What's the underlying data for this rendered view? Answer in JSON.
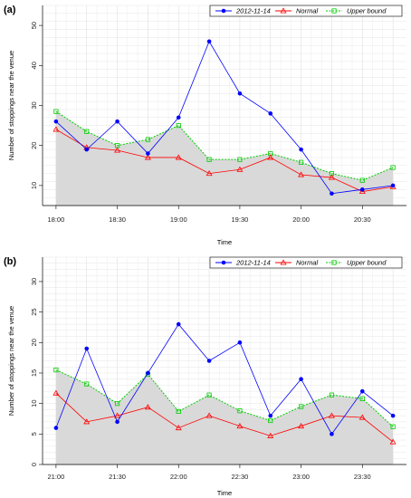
{
  "chart_data": [
    {
      "type": "line",
      "panel_label": "(a)",
      "xlabel": "Time",
      "ylabel": "Number of stoppings near the venue",
      "x_ticks": [
        "18:00",
        "18:30",
        "19:00",
        "19:30",
        "20:00",
        "20:30"
      ],
      "x": [
        "18:00",
        "18:15",
        "18:30",
        "18:45",
        "19:00",
        "19:15",
        "19:30",
        "19:45",
        "20:00",
        "20:15",
        "20:30",
        "20:45"
      ],
      "xlim": [
        "18:00",
        "20:45"
      ],
      "ylim": [
        5,
        55
      ],
      "y_ticks": [
        10,
        20,
        30,
        40,
        50
      ],
      "grid": true,
      "legend_position": "top-right",
      "series": [
        {
          "name": "2012-11-14",
          "color": "#0000ff",
          "marker": "circle",
          "values": [
            26,
            19,
            26,
            18,
            27,
            46,
            33,
            28,
            19,
            8,
            9,
            10
          ]
        },
        {
          "name": "Normal",
          "color": "#ff0000",
          "marker": "triangle",
          "values": [
            24,
            19.5,
            18.8,
            17,
            17,
            13,
            14,
            17,
            12.7,
            12,
            8.5,
            9.7
          ]
        },
        {
          "name": "Upper bound",
          "color": "#00cc00",
          "marker": "square",
          "dashed": true,
          "shaded": true,
          "fill": "#d9d9d9",
          "values": [
            28.5,
            23.5,
            20,
            21.5,
            25,
            16.5,
            16.5,
            18,
            15.8,
            13,
            11.3,
            14.5
          ]
        }
      ]
    },
    {
      "type": "line",
      "panel_label": "(b)",
      "xlabel": "Time",
      "ylabel": "Number of stoppings near the venue",
      "x_ticks": [
        "21:00",
        "21:30",
        "22:00",
        "22:30",
        "23:00",
        "23:30"
      ],
      "x": [
        "21:00",
        "21:15",
        "21:30",
        "21:45",
        "22:00",
        "22:15",
        "22:30",
        "22:45",
        "23:00",
        "23:15",
        "23:30",
        "23:45"
      ],
      "xlim": [
        "21:00",
        "23:45"
      ],
      "ylim": [
        0,
        34
      ],
      "y_ticks": [
        0,
        5,
        10,
        15,
        20,
        25,
        30
      ],
      "grid": true,
      "legend_position": "top-right",
      "series": [
        {
          "name": "2012-11-14",
          "color": "#0000ff",
          "marker": "circle",
          "values": [
            6,
            19,
            7,
            15,
            23,
            17,
            20,
            8,
            14,
            5,
            12,
            8
          ]
        },
        {
          "name": "Normal",
          "color": "#ff0000",
          "marker": "triangle",
          "values": [
            11.7,
            7,
            8,
            9.4,
            6,
            8,
            6.3,
            4.7,
            6.3,
            8,
            7.7,
            3.7
          ]
        },
        {
          "name": "Upper bound",
          "color": "#00cc00",
          "marker": "square",
          "dashed": true,
          "shaded": true,
          "fill": "#d9d9d9",
          "values": [
            15.5,
            13.2,
            10,
            14.8,
            8.7,
            11.4,
            8.8,
            7.2,
            9.5,
            11.4,
            10.8,
            6.2
          ]
        }
      ]
    }
  ]
}
